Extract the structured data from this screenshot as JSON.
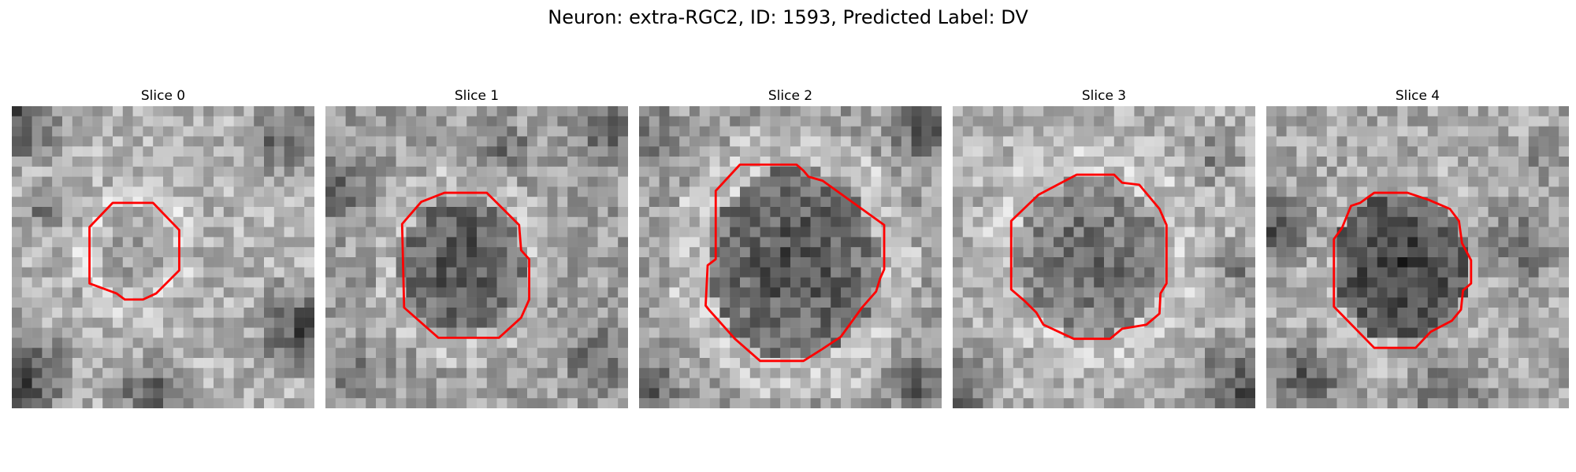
{
  "suptitle": "Neuron: extra-RGC2, ID: 1593, Predicted Label: DV",
  "colors": {
    "background": "#ffffff",
    "contour": "#ff0000",
    "colormap": "grayscale"
  },
  "panels": [
    {
      "title": "Slice 0"
    },
    {
      "title": "Slice 1"
    },
    {
      "title": "Slice 2"
    },
    {
      "title": "Slice 3"
    },
    {
      "title": "Slice 4"
    }
  ]
}
